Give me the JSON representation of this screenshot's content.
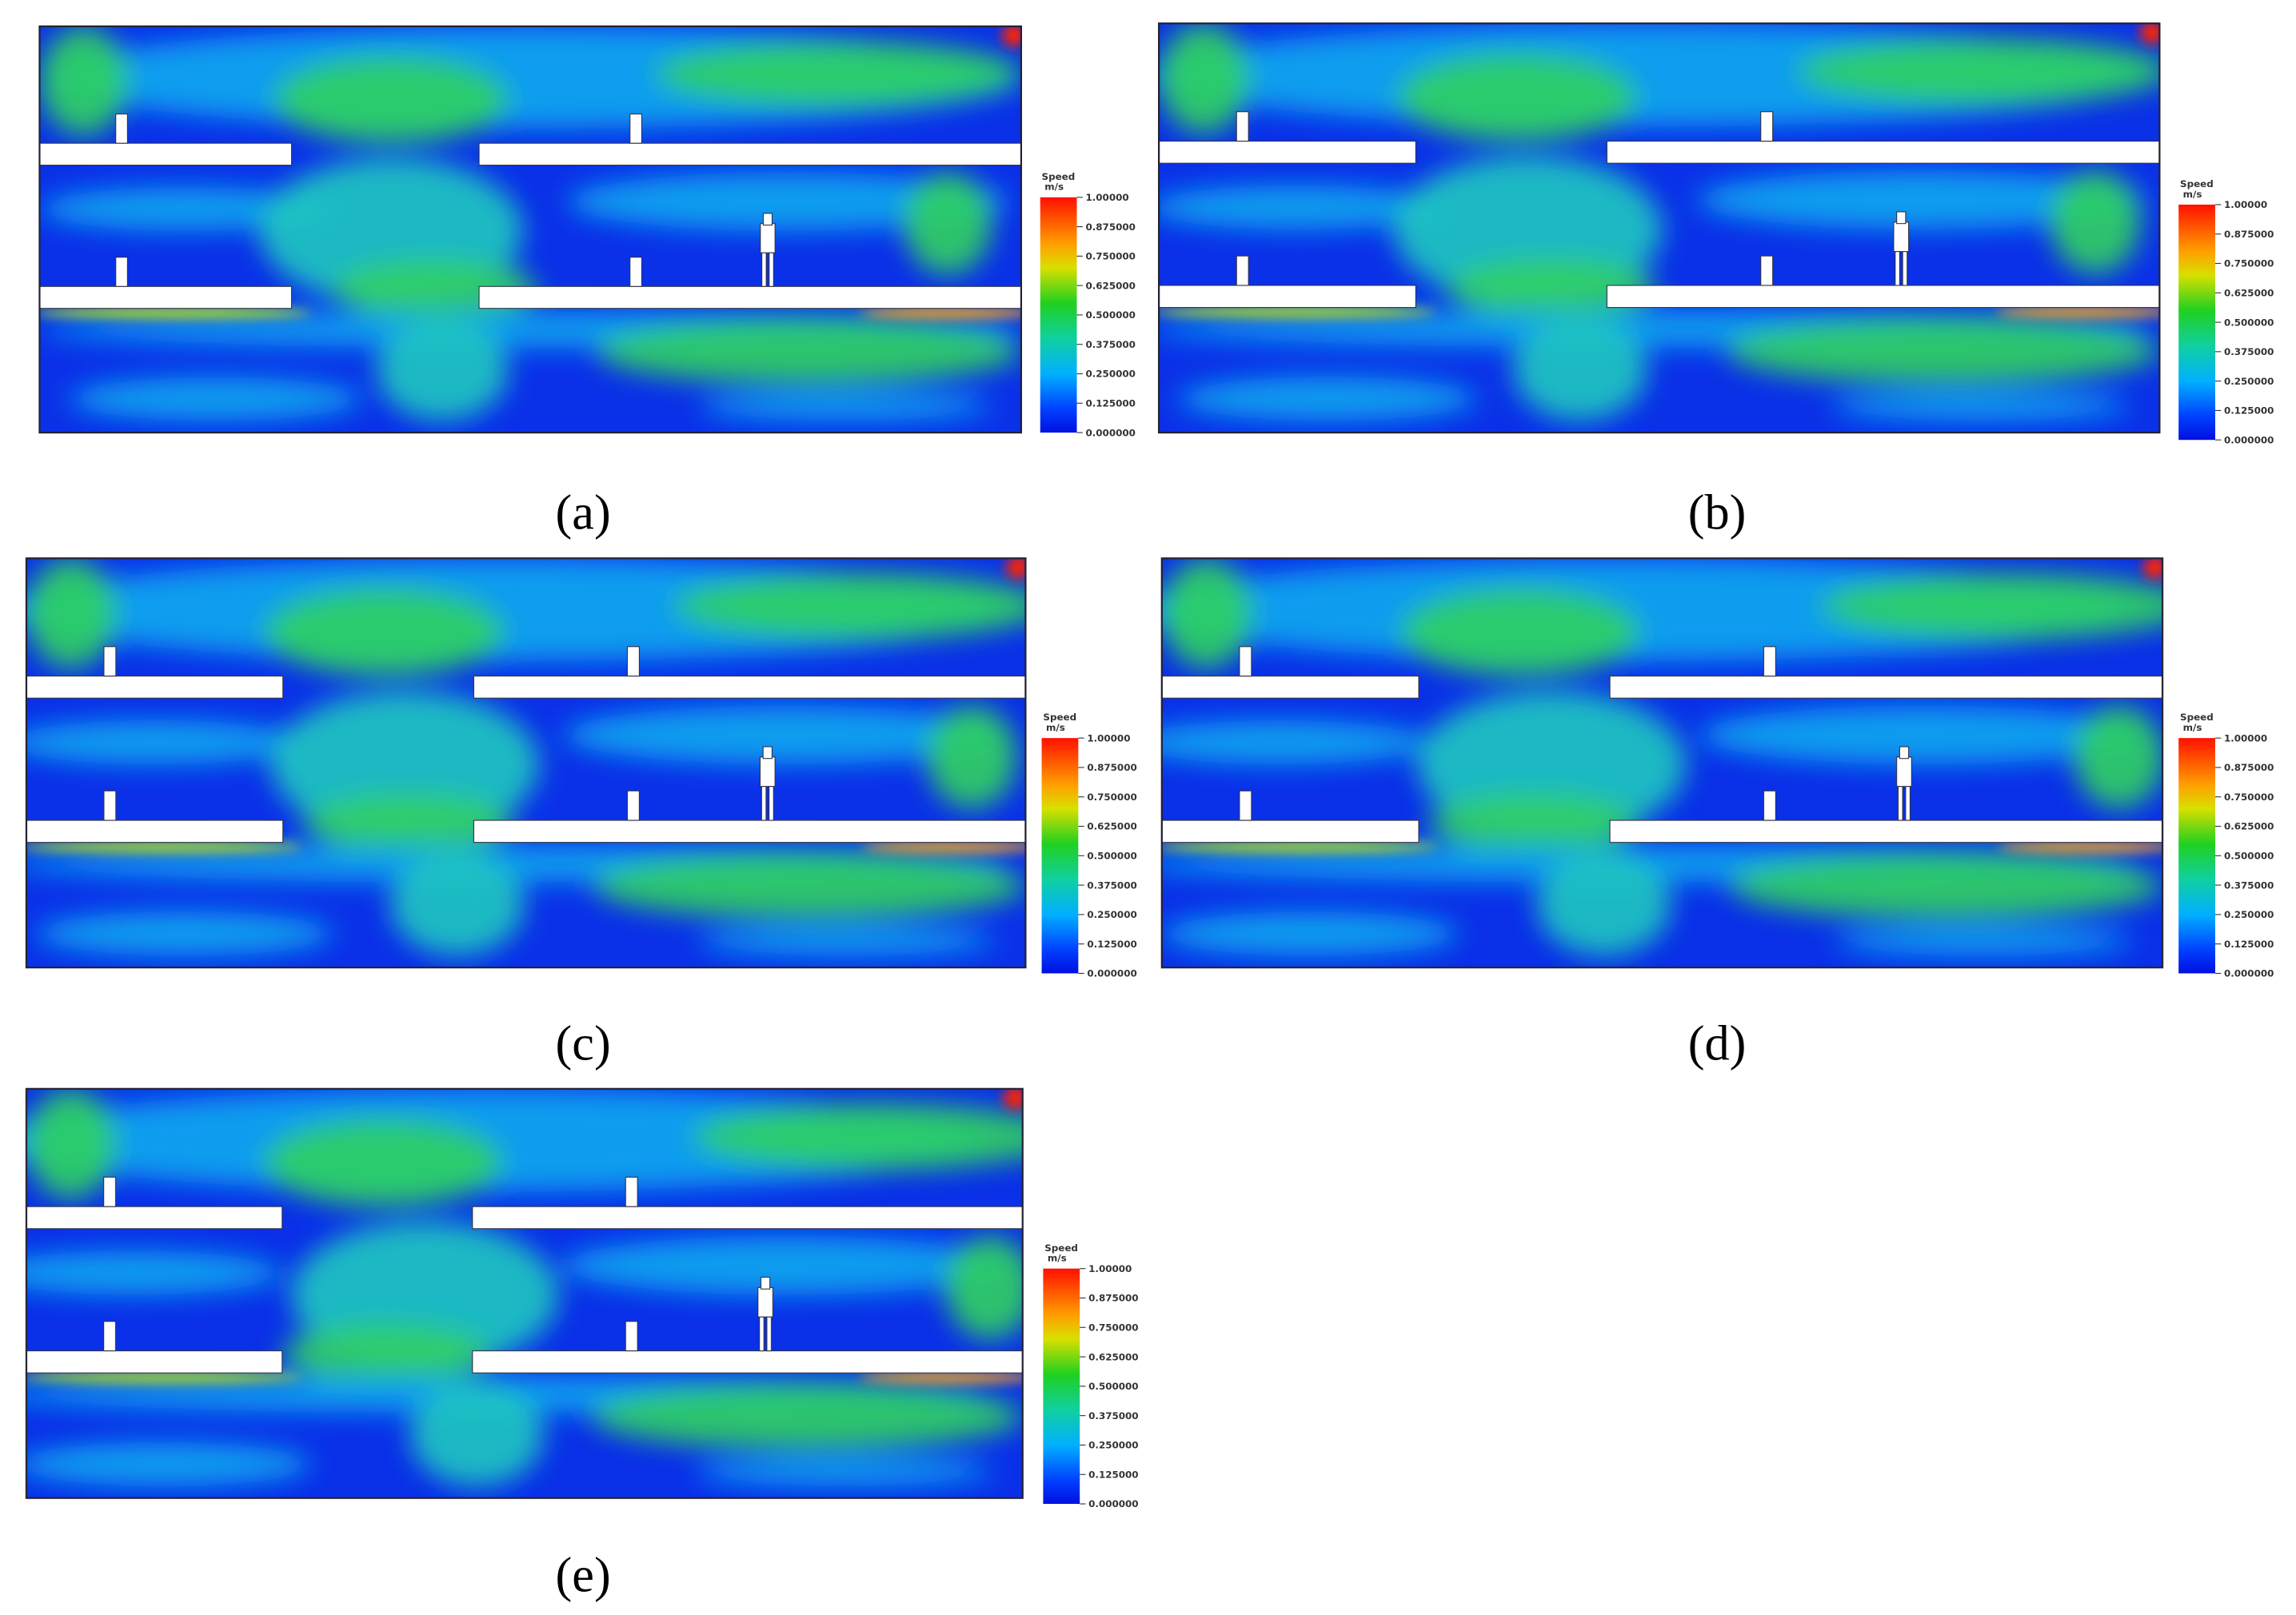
{
  "panels": [
    {
      "label": "(a)"
    },
    {
      "label": "(b)"
    },
    {
      "label": "(c)"
    },
    {
      "label": "(d)"
    },
    {
      "label": "(e)"
    }
  ],
  "colorbar": {
    "title": "Speed",
    "unit": "m/s",
    "ticks": [
      "1.00000",
      "0.875000",
      "0.750000",
      "0.625000",
      "0.500000",
      "0.375000",
      "0.250000",
      "0.125000",
      "0.000000"
    ]
  }
}
